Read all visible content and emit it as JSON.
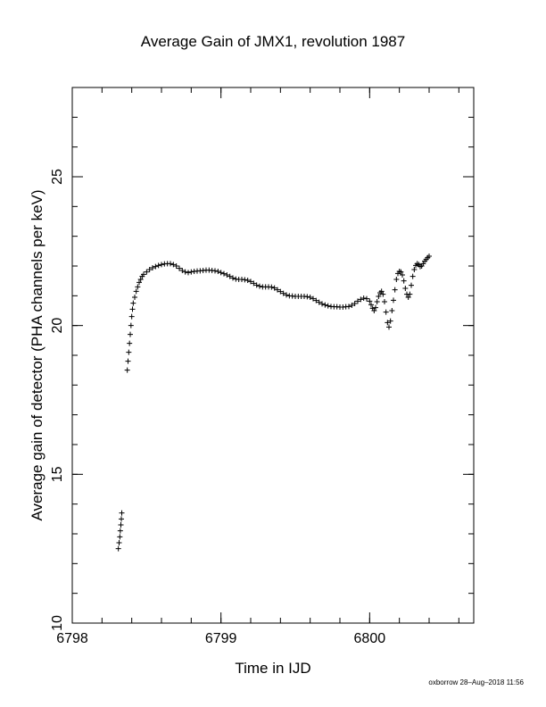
{
  "chart_data": {
    "type": "scatter",
    "title": "Average Gain of JMX1, revolution 1987",
    "xlabel": "Time in IJD",
    "ylabel": "Average gain of detector (PHA channels per keV)",
    "xlim": [
      6798,
      6800.7
    ],
    "ylim": [
      10,
      28
    ],
    "x_ticks": [
      6798,
      6799,
      6800
    ],
    "y_ticks": [
      10,
      15,
      20,
      25
    ],
    "grid": false,
    "marker": "plus",
    "color": "#000000",
    "points": [
      [
        6798.31,
        12.5
      ],
      [
        6798.315,
        12.7
      ],
      [
        6798.32,
        12.9
      ],
      [
        6798.323,
        13.1
      ],
      [
        6798.327,
        13.3
      ],
      [
        6798.33,
        13.5
      ],
      [
        6798.333,
        13.7
      ],
      [
        6798.37,
        18.5
      ],
      [
        6798.375,
        18.8
      ],
      [
        6798.38,
        19.1
      ],
      [
        6798.385,
        19.4
      ],
      [
        6798.39,
        19.7
      ],
      [
        6798.395,
        20.0
      ],
      [
        6798.4,
        20.3
      ],
      [
        6798.405,
        20.55
      ],
      [
        6798.41,
        20.75
      ],
      [
        6798.42,
        20.95
      ],
      [
        6798.43,
        21.15
      ],
      [
        6798.44,
        21.3
      ],
      [
        6798.45,
        21.45
      ],
      [
        6798.46,
        21.55
      ],
      [
        6798.47,
        21.65
      ],
      [
        6798.48,
        21.72
      ],
      [
        6798.5,
        21.8
      ],
      [
        6798.52,
        21.88
      ],
      [
        6798.54,
        21.94
      ],
      [
        6798.56,
        21.98
      ],
      [
        6798.58,
        22.02
      ],
      [
        6798.6,
        22.05
      ],
      [
        6798.62,
        22.07
      ],
      [
        6798.64,
        22.08
      ],
      [
        6798.66,
        22.08
      ],
      [
        6798.68,
        22.05
      ],
      [
        6798.7,
        22.0
      ],
      [
        6798.72,
        21.92
      ],
      [
        6798.74,
        21.85
      ],
      [
        6798.76,
        21.8
      ],
      [
        6798.78,
        21.78
      ],
      [
        6798.8,
        21.8
      ],
      [
        6798.82,
        21.82
      ],
      [
        6798.84,
        21.83
      ],
      [
        6798.86,
        21.84
      ],
      [
        6798.88,
        21.85
      ],
      [
        6798.9,
        21.86
      ],
      [
        6798.92,
        21.86
      ],
      [
        6798.94,
        21.85
      ],
      [
        6798.96,
        21.84
      ],
      [
        6798.98,
        21.82
      ],
      [
        6799.0,
        21.78
      ],
      [
        6799.02,
        21.74
      ],
      [
        6799.04,
        21.7
      ],
      [
        6799.06,
        21.65
      ],
      [
        6799.08,
        21.6
      ],
      [
        6799.1,
        21.56
      ],
      [
        6799.12,
        21.55
      ],
      [
        6799.14,
        21.55
      ],
      [
        6799.16,
        21.54
      ],
      [
        6799.18,
        21.52
      ],
      [
        6799.2,
        21.48
      ],
      [
        6799.22,
        21.42
      ],
      [
        6799.24,
        21.36
      ],
      [
        6799.26,
        21.32
      ],
      [
        6799.28,
        21.3
      ],
      [
        6799.3,
        21.3
      ],
      [
        6799.32,
        21.3
      ],
      [
        6799.34,
        21.29
      ],
      [
        6799.36,
        21.26
      ],
      [
        6799.38,
        21.2
      ],
      [
        6799.4,
        21.14
      ],
      [
        6799.42,
        21.08
      ],
      [
        6799.44,
        21.03
      ],
      [
        6799.46,
        21.0
      ],
      [
        6799.48,
        20.99
      ],
      [
        6799.5,
        20.98
      ],
      [
        6799.52,
        20.98
      ],
      [
        6799.54,
        20.98
      ],
      [
        6799.56,
        20.98
      ],
      [
        6799.58,
        20.97
      ],
      [
        6799.6,
        20.95
      ],
      [
        6799.62,
        20.9
      ],
      [
        6799.64,
        20.84
      ],
      [
        6799.66,
        20.78
      ],
      [
        6799.68,
        20.73
      ],
      [
        6799.7,
        20.69
      ],
      [
        6799.72,
        20.66
      ],
      [
        6799.74,
        20.64
      ],
      [
        6799.76,
        20.63
      ],
      [
        6799.78,
        20.63
      ],
      [
        6799.8,
        20.62
      ],
      [
        6799.82,
        20.62
      ],
      [
        6799.84,
        20.63
      ],
      [
        6799.86,
        20.64
      ],
      [
        6799.88,
        20.68
      ],
      [
        6799.9,
        20.74
      ],
      [
        6799.92,
        20.82
      ],
      [
        6799.94,
        20.88
      ],
      [
        6799.96,
        20.92
      ],
      [
        6799.98,
        20.9
      ],
      [
        6800.0,
        20.82
      ],
      [
        6800.01,
        20.7
      ],
      [
        6800.02,
        20.58
      ],
      [
        6800.03,
        20.5
      ],
      [
        6800.04,
        20.6
      ],
      [
        6800.05,
        20.8
      ],
      [
        6800.06,
        20.98
      ],
      [
        6800.07,
        21.1
      ],
      [
        6800.08,
        21.15
      ],
      [
        6800.09,
        21.05
      ],
      [
        6800.1,
        20.8
      ],
      [
        6800.11,
        20.45
      ],
      [
        6800.12,
        20.1
      ],
      [
        6800.13,
        19.95
      ],
      [
        6800.14,
        20.15
      ],
      [
        6800.15,
        20.5
      ],
      [
        6800.16,
        20.85
      ],
      [
        6800.17,
        21.2
      ],
      [
        6800.18,
        21.55
      ],
      [
        6800.19,
        21.75
      ],
      [
        6800.2,
        21.82
      ],
      [
        6800.21,
        21.8
      ],
      [
        6800.22,
        21.7
      ],
      [
        6800.23,
        21.5
      ],
      [
        6800.24,
        21.25
      ],
      [
        6800.25,
        21.05
      ],
      [
        6800.26,
        20.95
      ],
      [
        6800.27,
        21.05
      ],
      [
        6800.28,
        21.35
      ],
      [
        6800.29,
        21.65
      ],
      [
        6800.3,
        21.88
      ],
      [
        6800.31,
        22.02
      ],
      [
        6800.32,
        22.08
      ],
      [
        6800.33,
        22.05
      ],
      [
        6800.34,
        21.98
      ],
      [
        6800.35,
        22.0
      ],
      [
        6800.36,
        22.08
      ],
      [
        6800.37,
        22.16
      ],
      [
        6800.38,
        22.22
      ],
      [
        6800.39,
        22.28
      ],
      [
        6800.4,
        22.33
      ]
    ]
  },
  "footer": "oxborrow 28–Aug–2018 11:56"
}
